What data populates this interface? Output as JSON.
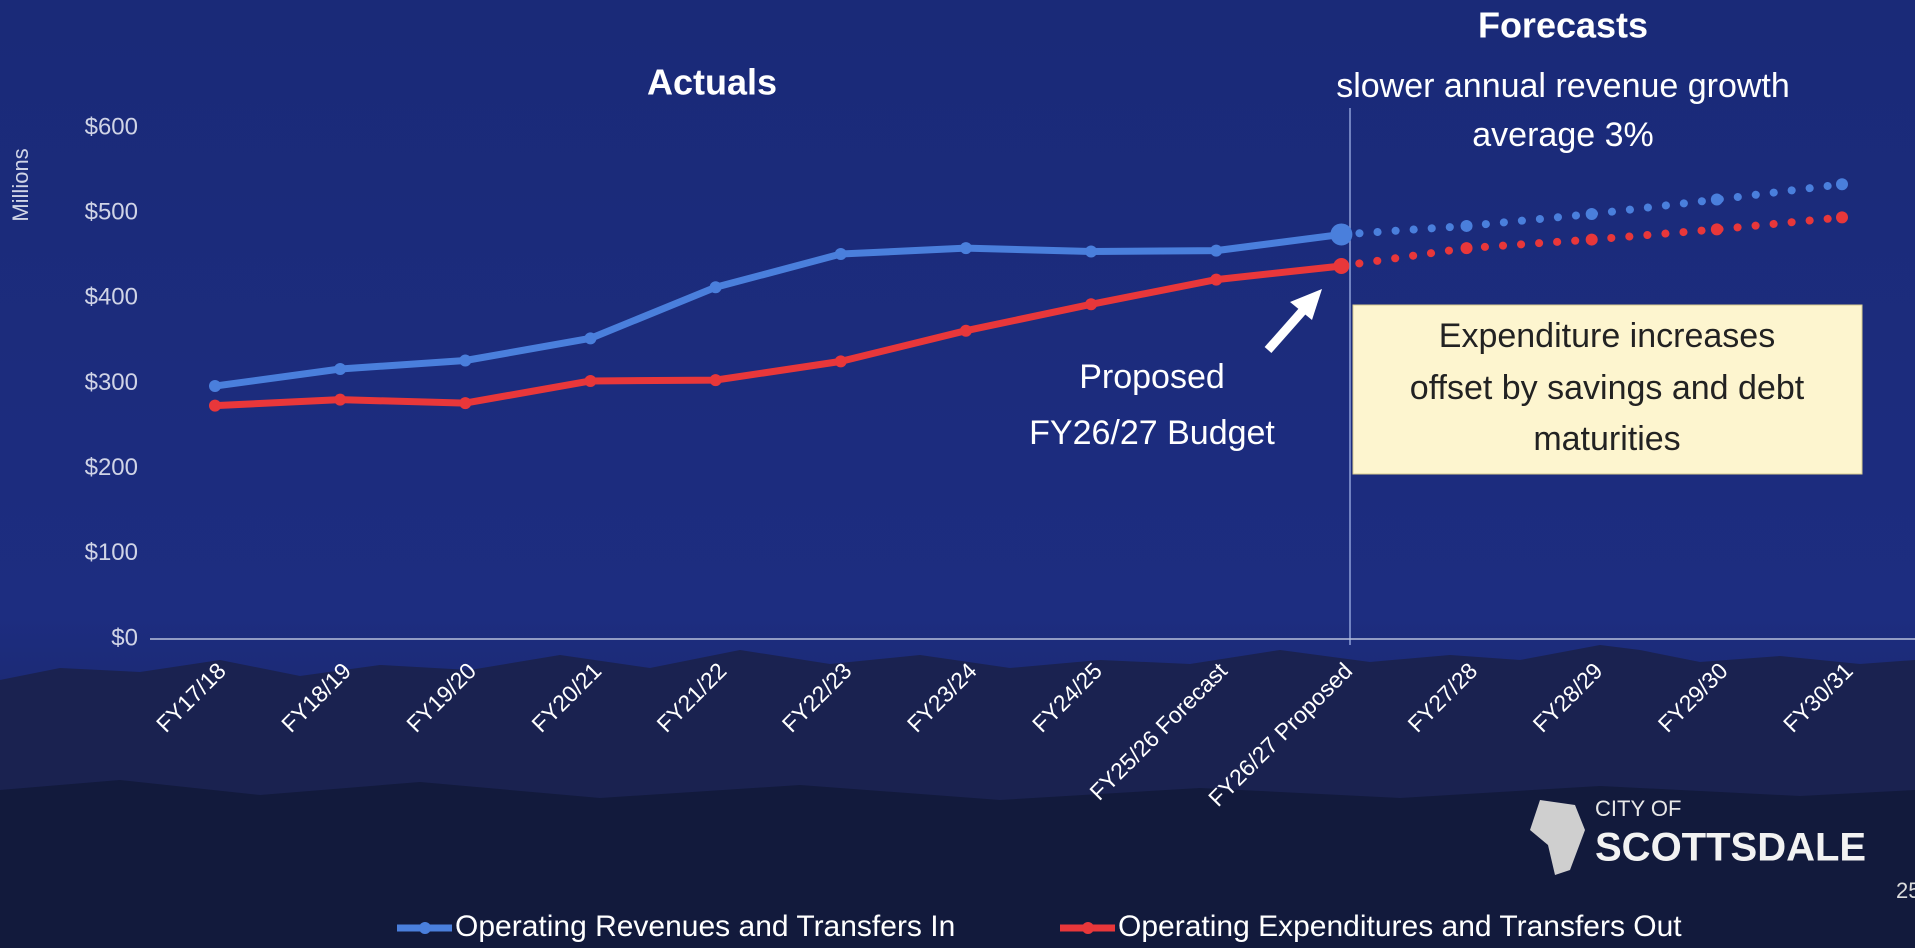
{
  "chart_data": {
    "type": "line",
    "y_axis_label": "Millions",
    "categories": [
      "FY17/18",
      "FY18/19",
      "FY19/20",
      "FY20/21",
      "FY21/22",
      "FY22/23",
      "FY23/24",
      "FY24/25",
      "FY25/26 Forecast",
      "FY26/27 Proposed",
      "FY27/28",
      "FY28/29",
      "FY29/30",
      "FY30/31"
    ],
    "series": [
      {
        "name": "Operating Revenues and Transfers In",
        "color": "#4a7fdc",
        "values": [
          297,
          317,
          327,
          353,
          413,
          452,
          459,
          455,
          456,
          475,
          485,
          499,
          516,
          534
        ]
      },
      {
        "name": "Operating Expenditures and Transfers Out",
        "color": "#e8373a",
        "values": [
          274,
          281,
          277,
          303,
          304,
          326,
          362,
          393,
          422,
          438,
          459,
          469,
          481,
          495
        ]
      }
    ],
    "ylim": [
      0,
      600
    ],
    "yticks": [
      {
        "value": 0,
        "label": "$0"
      },
      {
        "value": 100,
        "label": "$100"
      },
      {
        "value": 200,
        "label": "$200"
      },
      {
        "value": 300,
        "label": "$300"
      },
      {
        "value": 400,
        "label": "$400"
      },
      {
        "value": 500,
        "label": "$500"
      },
      {
        "value": 600,
        "label": "$600"
      }
    ],
    "grid": false,
    "legend": "bottom",
    "annotations": {
      "actuals": "Actuals",
      "forecasts": "Forecasts",
      "forecast_note": [
        "slower annual revenue growth",
        "average 3%"
      ],
      "proposed": [
        "Proposed",
        "FY26/27 Budget"
      ],
      "callout": [
        "Expenditure increases",
        "offset by savings and debt",
        "maturities"
      ]
    },
    "logo": [
      "CITY OF",
      "SCOTTSDALE"
    ],
    "page_number": "25"
  }
}
